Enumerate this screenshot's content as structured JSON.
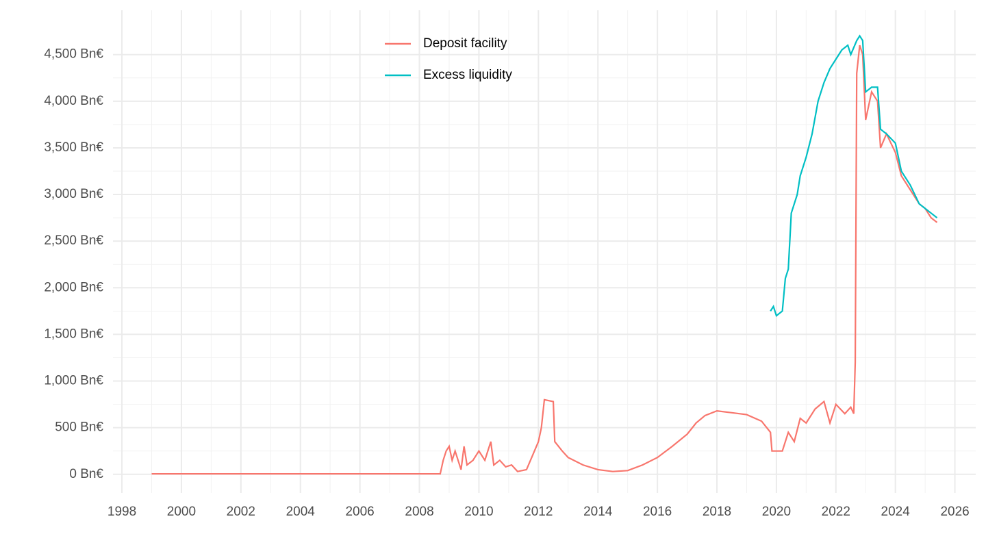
{
  "chart_data": {
    "type": "line",
    "series": [
      {
        "name": "Deposit facility",
        "color": "#f8766d",
        "x": [
          1999.0,
          2008.7,
          2008.8,
          2008.9,
          2009.0,
          2009.1,
          2009.2,
          2009.4,
          2009.5,
          2009.6,
          2009.8,
          2010.0,
          2010.2,
          2010.4,
          2010.5,
          2010.7,
          2010.9,
          2011.1,
          2011.3,
          2011.6,
          2011.8,
          2012.0,
          2012.1,
          2012.2,
          2012.5,
          2012.55,
          2012.8,
          2013.0,
          2013.5,
          2014.0,
          2014.5,
          2015.0,
          2015.5,
          2016.0,
          2016.5,
          2017.0,
          2017.3,
          2017.6,
          2018.0,
          2018.5,
          2019.0,
          2019.5,
          2019.8,
          2019.85,
          2020.2,
          2020.4,
          2020.6,
          2020.8,
          2021.0,
          2021.3,
          2021.6,
          2021.8,
          2022.0,
          2022.3,
          2022.5,
          2022.6,
          2022.65,
          2022.7,
          2022.8,
          2022.9,
          2023.0,
          2023.2,
          2023.4,
          2023.5,
          2023.7,
          2024.0,
          2024.2,
          2024.5,
          2024.8,
          2025.0,
          2025.2,
          2025.4
        ],
        "values": [
          5,
          5,
          150,
          250,
          300,
          150,
          250,
          50,
          300,
          100,
          150,
          250,
          150,
          350,
          100,
          150,
          80,
          100,
          30,
          50,
          200,
          350,
          500,
          800,
          780,
          350,
          250,
          180,
          100,
          50,
          30,
          40,
          100,
          180,
          300,
          430,
          550,
          630,
          680,
          660,
          640,
          570,
          450,
          250,
          250,
          450,
          350,
          600,
          550,
          700,
          780,
          550,
          750,
          650,
          720,
          650,
          1200,
          4300,
          4600,
          4500,
          3800,
          4100,
          4000,
          3500,
          3650,
          3450,
          3200,
          3050,
          2900,
          2850,
          2750,
          2700
        ]
      },
      {
        "name": "Excess liquidity",
        "color": "#00bfc4",
        "x": [
          2019.8,
          2019.9,
          2020.0,
          2020.2,
          2020.3,
          2020.4,
          2020.5,
          2020.7,
          2020.8,
          2021.0,
          2021.2,
          2021.4,
          2021.6,
          2021.8,
          2022.0,
          2022.2,
          2022.4,
          2022.5,
          2022.7,
          2022.8,
          2022.9,
          2023.0,
          2023.2,
          2023.4,
          2023.5,
          2023.7,
          2024.0,
          2024.2,
          2024.5,
          2024.8,
          2025.0,
          2025.2,
          2025.4
        ],
        "values": [
          1750,
          1800,
          1700,
          1750,
          2100,
          2200,
          2800,
          3000,
          3200,
          3400,
          3650,
          4000,
          4200,
          4350,
          4450,
          4550,
          4600,
          4500,
          4650,
          4700,
          4650,
          4100,
          4150,
          4150,
          3700,
          3650,
          3550,
          3250,
          3100,
          2900,
          2850,
          2800,
          2750
        ]
      }
    ],
    "xlim": [
      1997.7,
      2026.7
    ],
    "xticks": [
      1998,
      2000,
      2002,
      2004,
      2006,
      2008,
      2010,
      2012,
      2014,
      2016,
      2018,
      2020,
      2022,
      2024,
      2026
    ],
    "ylim": [
      -200,
      4975
    ],
    "yticks": [
      {
        "value": 0,
        "label": "0 Bn€"
      },
      {
        "value": 500,
        "label": "500 Bn€"
      },
      {
        "value": 1000,
        "label": "1,000 Bn€"
      },
      {
        "value": 1500,
        "label": "1,500 Bn€"
      },
      {
        "value": 2000,
        "label": "2,000 Bn€"
      },
      {
        "value": 2500,
        "label": "2,500 Bn€"
      },
      {
        "value": 3000,
        "label": "3,000 Bn€"
      },
      {
        "value": 3500,
        "label": "3,500 Bn€"
      },
      {
        "value": 4000,
        "label": "4,000 Bn€"
      },
      {
        "value": 4500,
        "label": "4,500 Bn€"
      }
    ],
    "grid": true,
    "legend": "top"
  }
}
